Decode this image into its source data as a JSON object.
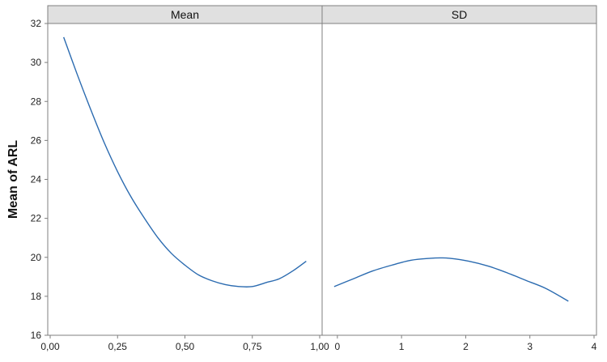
{
  "chart_data": {
    "type": "line",
    "ylabel": "Mean of ARL",
    "ylim": [
      16,
      32
    ],
    "yticks": [
      16,
      18,
      20,
      22,
      24,
      26,
      28,
      30,
      32
    ],
    "grid": false,
    "colors": {
      "line": "#2b6bb0",
      "header": "#e0e0e0",
      "frame": "#7f7f7f"
    },
    "panels": [
      {
        "title": "Mean",
        "xlim": [
          0,
          1
        ],
        "xticks": [
          0,
          0.25,
          0.5,
          0.75,
          1
        ],
        "xtick_labels": [
          "0,00",
          "0,25",
          "0,50",
          "0,75",
          "1,00"
        ],
        "series": [
          {
            "x": [
              0.05,
              0.1,
              0.15,
              0.2,
              0.25,
              0.3,
              0.35,
              0.4,
              0.45,
              0.5,
              0.55,
              0.6,
              0.65,
              0.7,
              0.75,
              0.8,
              0.85,
              0.9,
              0.95
            ],
            "y": [
              31.3,
              29.4,
              27.6,
              25.9,
              24.4,
              23.1,
              22.0,
              21.0,
              20.2,
              19.6,
              19.1,
              18.8,
              18.6,
              18.5,
              18.5,
              18.7,
              18.9,
              19.3,
              19.8
            ]
          }
        ]
      },
      {
        "title": "SD",
        "xlim": [
          -0.2,
          4
        ],
        "xticks": [
          0,
          1,
          2,
          3,
          4
        ],
        "xtick_labels": [
          "0",
          "1",
          "2",
          "3",
          "4"
        ],
        "series": [
          {
            "x": [
              -0.05,
              0.25,
              0.55,
              0.85,
              1.15,
              1.45,
              1.6,
              1.75,
              2.05,
              2.35,
              2.65,
              2.95,
              3.25,
              3.6
            ],
            "y": [
              18.5,
              18.9,
              19.3,
              19.6,
              19.85,
              19.95,
              19.97,
              19.95,
              19.8,
              19.55,
              19.2,
              18.8,
              18.4,
              17.75
            ]
          }
        ]
      }
    ]
  }
}
